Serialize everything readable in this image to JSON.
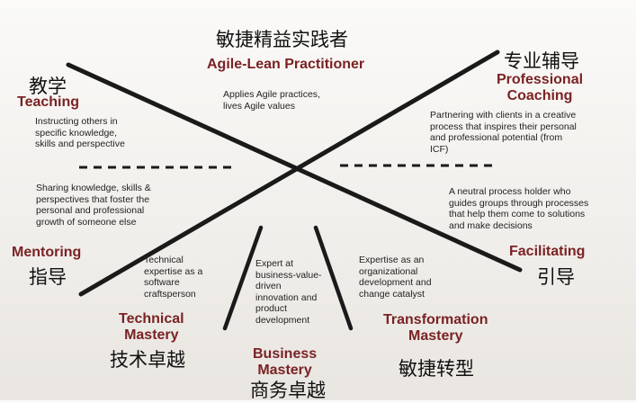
{
  "agile_lean": {
    "zh_title": "敏捷精益实践者",
    "title": "Agile-Lean Practitioner",
    "desc": [
      "Applies Agile practices,",
      "lives Agile values"
    ]
  },
  "teaching": {
    "zh_title": "教学",
    "title": "Teaching",
    "desc": [
      "Instructing others in",
      "specific knowledge,",
      "skills and perspective"
    ]
  },
  "professional_coaching": {
    "zh_title": "专业辅导",
    "title_lines": [
      "Professional",
      "Coaching"
    ],
    "desc": [
      "Partnering with clients in a creative",
      "process that inspires their personal",
      "and professional potential (from",
      "ICF)"
    ]
  },
  "mentoring": {
    "zh_title": "指导",
    "title": "Mentoring",
    "desc": [
      "Sharing knowledge, skills &",
      "perspectives that foster the",
      "personal and professional",
      "growth of someone else"
    ]
  },
  "facilitating": {
    "zh_title": "引导",
    "title": "Facilitating",
    "desc": [
      "A neutral process holder who",
      "guides groups through processes",
      "that help them come to solutions",
      "and make decisions"
    ]
  },
  "technical_mastery": {
    "zh_title": "技术卓越",
    "title_lines": [
      "Technical",
      "Mastery"
    ],
    "desc": [
      "Technical",
      "expertise as a",
      "software",
      "craftsperson"
    ]
  },
  "business_mastery": {
    "zh_title": "商务卓越",
    "title_lines": [
      "Business",
      "Mastery"
    ],
    "desc": [
      "Expert at",
      "business-value-",
      "driven",
      "innovation and",
      "product",
      "development"
    ]
  },
  "transformation_mastery": {
    "zh_title": "敏捷转型",
    "title_lines": [
      "Transformation",
      "Mastery"
    ],
    "desc": [
      "Expertise as an",
      "organizational",
      "development and",
      "change catalyst"
    ]
  },
  "colors": {
    "heading": "#7a2224",
    "line": "#1a1a1a",
    "text": "#222222"
  }
}
